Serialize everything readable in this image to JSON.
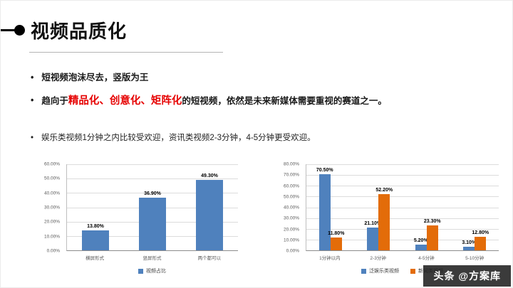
{
  "slide": {
    "title": "视频品质化",
    "bullet_char": "•",
    "bullets": {
      "b1": "短视频泡沫尽去，竖版为王",
      "b2_prefix": "趋向于",
      "b2_highlight": "精品化、创意化、矩阵化",
      "b2_suffix": "的短视频，依然是未来新媒体需要重视的赛道之一。",
      "b3": "娱乐类视频1分钟之内比较受欢迎，资讯类视频2-3分钟，4-5分钟更受欢迎。"
    },
    "watermark": "头条 @方案库"
  },
  "colors": {
    "bar_blue": "#4F81BD",
    "bar_orange": "#E36C09",
    "highlight_red": "#E60000"
  },
  "chart_data": [
    {
      "type": "bar",
      "title": "",
      "categories": [
        "横屏形式",
        "竖屏形式",
        "两个都可以"
      ],
      "series": [
        {
          "name": "视频占比",
          "color": "#4F81BD",
          "values": [
            13.8,
            36.9,
            49.3
          ]
        }
      ],
      "value_labels": [
        [
          "13.80%",
          "36.90%",
          "49.30%"
        ]
      ],
      "xlabel": "",
      "ylabel": "",
      "ylim": [
        0,
        60
      ],
      "ytick_labels": [
        "60.00%",
        "50.00%",
        "40.00%",
        "30.00%",
        "20.00%",
        "10.00%",
        "0.00%"
      ],
      "grid": true,
      "legend_position": "bottom"
    },
    {
      "type": "bar",
      "title": "",
      "categories": [
        "1分钟以内",
        "2-3分钟",
        "4-5分钟",
        "5-10分钟"
      ],
      "series": [
        {
          "name": "泛娱乐类视频",
          "color": "#4F81BD",
          "values": [
            70.5,
            21.1,
            5.2,
            3.1
          ]
        },
        {
          "name": "新闻类视频",
          "color": "#E36C09",
          "values": [
            11.8,
            52.2,
            23.3,
            12.8
          ]
        }
      ],
      "value_labels": [
        [
          "70.50%",
          "21.10%",
          "5.20%",
          "3.10%"
        ],
        [
          "11.80%",
          "52.20%",
          "23.30%",
          "12.80%"
        ]
      ],
      "xlabel": "",
      "ylabel": "",
      "ylim": [
        0,
        80
      ],
      "ytick_labels": [
        "80.00%",
        "70.00%",
        "60.00%",
        "50.00%",
        "40.00%",
        "30.00%",
        "20.00%",
        "10.00%",
        "0.00%"
      ],
      "grid": true,
      "legend_position": "bottom"
    }
  ]
}
